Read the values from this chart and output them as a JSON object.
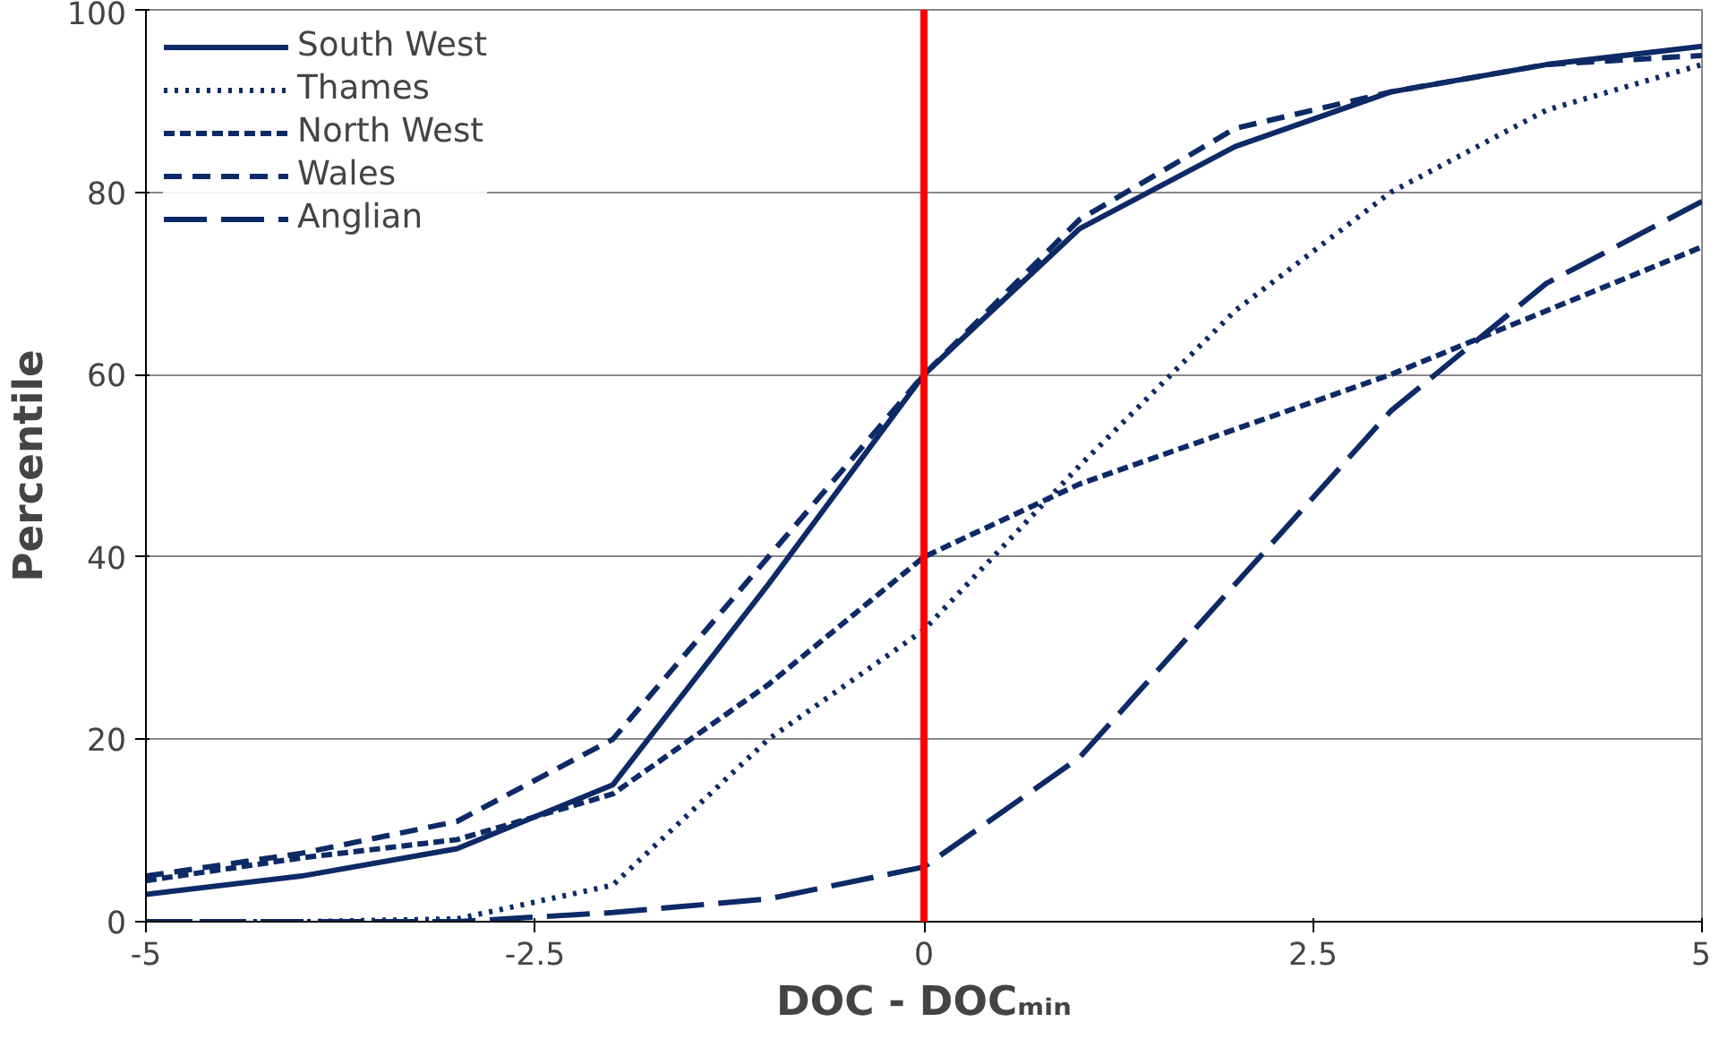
{
  "chart_data": {
    "type": "line",
    "xlabel": "DOC - DOCₘᵢₙ",
    "ylabel": "Percentile",
    "x": [
      -5,
      -4,
      -3,
      -2,
      -1,
      0,
      1,
      2,
      3,
      4,
      5
    ],
    "series": [
      {
        "name": "South West",
        "color": "#0d2a66",
        "line_style": "solid",
        "values": [
          3,
          5,
          8,
          15,
          37,
          60,
          76,
          85,
          91,
          94,
          96
        ]
      },
      {
        "name": "Thames",
        "color": "#0d2a66",
        "line_style": "dotted",
        "values": [
          0,
          0,
          0.3,
          4,
          20,
          32,
          50,
          67,
          80,
          89,
          94
        ]
      },
      {
        "name": "North West",
        "color": "#0d2a66",
        "line_style": "dashed",
        "values": [
          4.5,
          7,
          9,
          14,
          26,
          40,
          48,
          54,
          60,
          67,
          74
        ]
      },
      {
        "name": "Wales",
        "color": "#0d2a66",
        "line_style": "dashed",
        "values": [
          5,
          7.5,
          11,
          20,
          40,
          60,
          77,
          87,
          91,
          94,
          95
        ]
      },
      {
        "name": "Anglian",
        "color": "#0d2a66",
        "line_style": "dashed",
        "values": [
          0,
          0,
          0,
          1,
          2.5,
          6,
          18,
          37,
          56,
          70,
          79
        ]
      }
    ],
    "xlim": [
      -5,
      5
    ],
    "ylim": [
      0,
      100
    ],
    "xticks": [
      -5,
      -2.5,
      0,
      2.5,
      5
    ],
    "yticks": [
      0,
      20,
      40,
      60,
      80,
      100
    ],
    "ref_lines": [
      {
        "axis": "x",
        "value": 0,
        "color": "#ff0000",
        "line_style": "solid"
      }
    ],
    "grid": "y",
    "legend": "top left",
    "marker": "none"
  }
}
